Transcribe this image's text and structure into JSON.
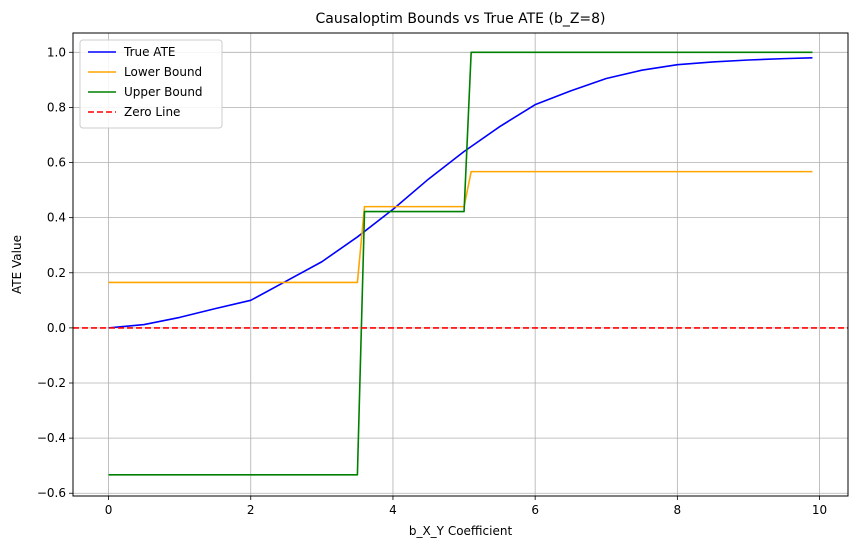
{
  "chart_data": {
    "type": "line",
    "title": "Causaloptim Bounds vs True ATE (b_Z=8)",
    "xlabel": "b_X_Y Coefficient",
    "ylabel": "ATE Value",
    "xlim": [
      -0.5,
      10.4
    ],
    "ylim": [
      -0.61,
      1.07
    ],
    "xticks": [
      0,
      2,
      4,
      6,
      8,
      10
    ],
    "yticks": [
      -0.6,
      -0.4,
      -0.2,
      0.0,
      0.2,
      0.4,
      0.6,
      0.8,
      1.0
    ],
    "xtick_labels": [
      "0",
      "2",
      "4",
      "6",
      "8",
      "10"
    ],
    "ytick_labels": [
      "−0.6",
      "−0.4",
      "−0.2",
      "0.0",
      "0.2",
      "0.4",
      "0.6",
      "0.8",
      "1.0"
    ],
    "grid": true,
    "legend_position": "top-left",
    "series": [
      {
        "name": "True ATE",
        "color": "#0000ff",
        "style": "solid",
        "x": [
          0,
          0.5,
          1,
          1.5,
          2,
          2.5,
          3,
          3.5,
          4,
          4.5,
          5,
          5.5,
          6,
          6.5,
          7,
          7.5,
          8,
          8.5,
          9,
          9.5,
          9.9
        ],
        "y": [
          0.0,
          0.012,
          0.038,
          0.07,
          0.1,
          0.17,
          0.24,
          0.33,
          0.43,
          0.54,
          0.64,
          0.73,
          0.81,
          0.86,
          0.905,
          0.935,
          0.955,
          0.965,
          0.972,
          0.977,
          0.98
        ]
      },
      {
        "name": "Lower Bound",
        "color": "#ffa500",
        "style": "solid",
        "x": [
          0,
          3.5,
          3.6,
          5.0,
          5.1,
          9.9
        ],
        "y": [
          0.165,
          0.165,
          0.44,
          0.44,
          0.567,
          0.567
        ]
      },
      {
        "name": "Upper Bound",
        "color": "#008000",
        "style": "solid",
        "x": [
          0,
          3.5,
          3.6,
          5.0,
          5.1,
          9.9
        ],
        "y": [
          -0.533,
          -0.533,
          0.422,
          0.422,
          1.0,
          1.0
        ]
      },
      {
        "name": "Zero Line",
        "color": "#ff0000",
        "style": "dashed",
        "x": [
          -0.5,
          10.4
        ],
        "y": [
          0.0,
          0.0
        ]
      }
    ]
  }
}
